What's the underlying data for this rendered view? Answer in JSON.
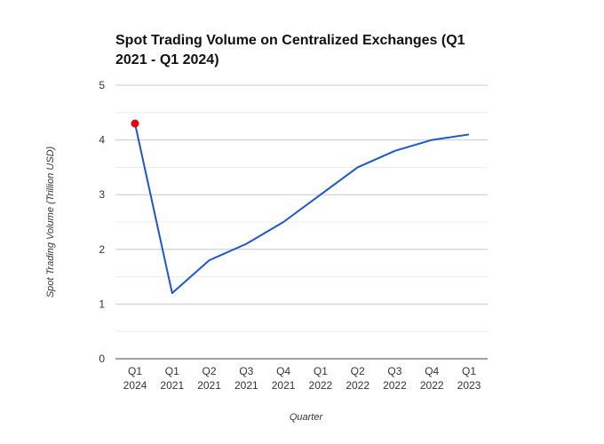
{
  "chart_data": {
    "type": "line",
    "title": "Spot Trading Volume on Centralized Exchanges (Q1 2021 - Q1 2024)",
    "xlabel": "Quarter",
    "ylabel": "Spot Trading Volume (Trillion USD)",
    "categories": [
      "Q1 2024",
      "Q1 2021",
      "Q2 2021",
      "Q3 2021",
      "Q4 2021",
      "Q1 2022",
      "Q2 2022",
      "Q3 2022",
      "Q4 2022",
      "Q1 2023"
    ],
    "category_lines": [
      [
        "Q1",
        "2024"
      ],
      [
        "Q1",
        "2021"
      ],
      [
        "Q2",
        "2021"
      ],
      [
        "Q3",
        "2021"
      ],
      [
        "Q4",
        "2021"
      ],
      [
        "Q1",
        "2022"
      ],
      [
        "Q2",
        "2022"
      ],
      [
        "Q3",
        "2022"
      ],
      [
        "Q4",
        "2022"
      ],
      [
        "Q1",
        "2023"
      ]
    ],
    "series": [
      {
        "values": [
          4.3,
          1.2,
          1.8,
          2.1,
          2.5,
          3.0,
          3.5,
          3.8,
          4.0,
          4.1
        ],
        "color": "#1a56d6"
      }
    ],
    "highlight_point": {
      "index": 0,
      "value": 4.3,
      "color": "#e8000b"
    },
    "ylim": [
      0,
      5
    ],
    "yticks": [
      0,
      1,
      2,
      3,
      4,
      5
    ],
    "grid": true
  }
}
